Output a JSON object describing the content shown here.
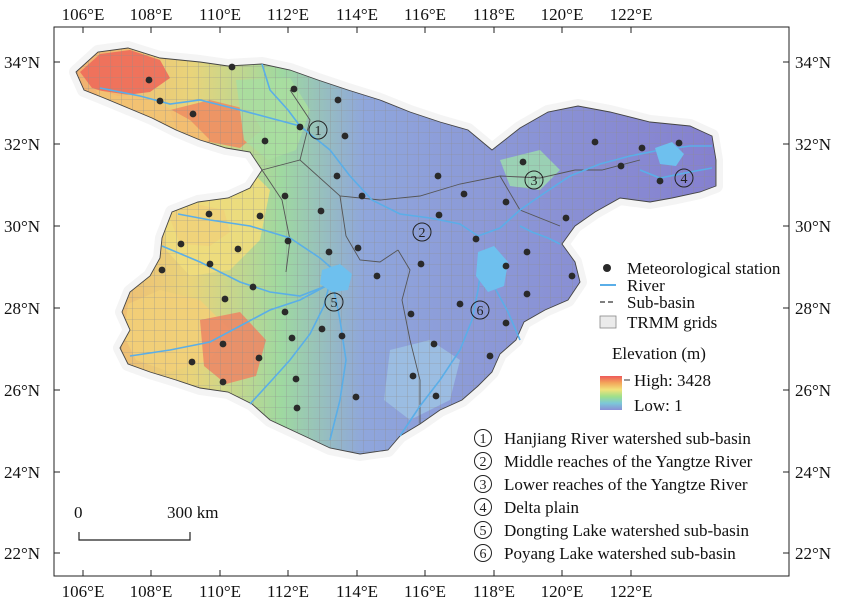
{
  "axes": {
    "lon_labels_top": [
      "106°E",
      "108°E",
      "110°E",
      "112°E",
      "114°E",
      "116°E",
      "118°E",
      "120°E",
      "122°E"
    ],
    "lon_labels_bottom": [
      "106°E",
      "108°E",
      "110°E",
      "112°E",
      "114°E",
      "116°E",
      "118°E",
      "120°E",
      "122°E"
    ],
    "lat_labels_left": [
      "34°N",
      "32°N",
      "30°N",
      "28°N",
      "26°N",
      "24°N",
      "22°N"
    ],
    "lat_labels_right": [
      "34°N",
      "32°N",
      "30°N",
      "28°N",
      "26°N",
      "24°N",
      "22°N"
    ]
  },
  "legend": {
    "station": "Meteorological station",
    "river": "River",
    "subbasin": "Sub-basin",
    "trmm": "TRMM grids",
    "elevation_title": "Elevation (m)",
    "high": "High: 3428",
    "low": "Low: 1"
  },
  "scale_bar": {
    "zero": "0",
    "distance": "300 km"
  },
  "subbasins": [
    {
      "num": "①",
      "name": "Hanjiang River watershed sub-basin"
    },
    {
      "num": "②",
      "name": "Middle reaches of the Yangtze River"
    },
    {
      "num": "③",
      "name": "Lower reaches of the Yangtze River"
    },
    {
      "num": "④",
      "name": "Delta plain"
    },
    {
      "num": "⑤",
      "name": "Dongting Lake watershed sub-basin"
    },
    {
      "num": "⑥",
      "name": "Poyang Lake watershed sub-basin"
    }
  ],
  "colors": {
    "river": "#5aaee8",
    "station": "#2a2a2a",
    "subbasin_line": "#555555",
    "grid_line": "#9a9a9a",
    "elevation_ramp": [
      "#ee5a5a",
      "#f3a55a",
      "#f2e27a",
      "#9fe08a",
      "#7cc8d8",
      "#8a8fd6"
    ]
  }
}
